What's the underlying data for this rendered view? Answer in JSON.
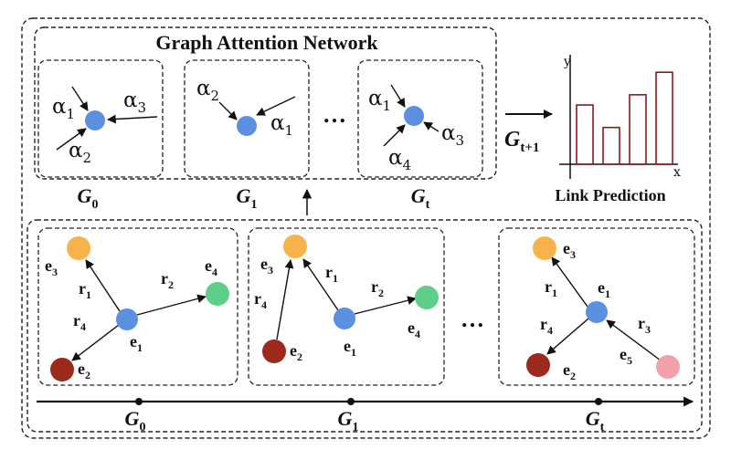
{
  "title": "Graph Attention Network",
  "attention_panels": [
    {
      "caption_main": "G",
      "caption_sub": "0",
      "labels": [
        {
          "main": "α",
          "sub": "1"
        },
        {
          "main": "α",
          "sub": "3"
        },
        {
          "main": "α",
          "sub": "2"
        }
      ]
    },
    {
      "caption_main": "G",
      "caption_sub": "1",
      "labels": [
        {
          "main": "α",
          "sub": "2"
        },
        {
          "main": "α",
          "sub": "1"
        }
      ]
    },
    {
      "caption_main": "G",
      "caption_sub": "t",
      "labels": [
        {
          "main": "α",
          "sub": "1"
        },
        {
          "main": "α",
          "sub": "3"
        },
        {
          "main": "α",
          "sub": "4"
        }
      ]
    }
  ],
  "ellipsis": "…",
  "next_graph": {
    "main": "G",
    "sub": "t+1"
  },
  "link_prediction": {
    "label": "Link Prediction",
    "y_axis": "y",
    "x_axis": "x",
    "bar_levels": [
      0.58,
      0.36,
      0.68,
      0.9
    ]
  },
  "snapshots": [
    {
      "caption_main": "G",
      "caption_sub": "0",
      "entities": [
        {
          "main": "e",
          "sub": "3"
        },
        {
          "main": "e",
          "sub": "4"
        },
        {
          "main": "e",
          "sub": "1"
        },
        {
          "main": "e",
          "sub": "2"
        }
      ],
      "relations": [
        {
          "main": "r",
          "sub": "1"
        },
        {
          "main": "r",
          "sub": "2"
        },
        {
          "main": "r",
          "sub": "4"
        }
      ]
    },
    {
      "caption_main": "G",
      "caption_sub": "1",
      "entities": [
        {
          "main": "e",
          "sub": "3"
        },
        {
          "main": "e",
          "sub": "2"
        },
        {
          "main": "e",
          "sub": "1"
        },
        {
          "main": "e",
          "sub": "4"
        }
      ],
      "relations": [
        {
          "main": "r",
          "sub": "1"
        },
        {
          "main": "r",
          "sub": "2"
        },
        {
          "main": "r",
          "sub": "4"
        }
      ]
    },
    {
      "caption_main": "G",
      "caption_sub": "t",
      "entities": [
        {
          "main": "e",
          "sub": "3"
        },
        {
          "main": "e",
          "sub": "1"
        },
        {
          "main": "e",
          "sub": "2"
        },
        {
          "main": "e",
          "sub": "5"
        }
      ],
      "relations": [
        {
          "main": "r",
          "sub": "1"
        },
        {
          "main": "r",
          "sub": "4"
        },
        {
          "main": "r",
          "sub": "3"
        }
      ]
    }
  ],
  "colors": {
    "node_blue": "#5b8fe0",
    "node_orange": "#f7b24a",
    "node_green": "#5fce88",
    "node_red": "#9b2a1c",
    "node_pink": "#f2a0aa",
    "bar_stroke": "#8b1a1a",
    "line": "#111111"
  }
}
